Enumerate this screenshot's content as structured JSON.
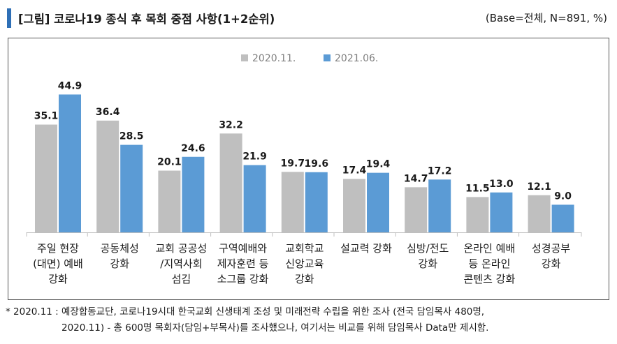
{
  "header": {
    "title": "[그림] 코로나19 종식 후 목회 중점 사항(1+2순위)",
    "base": "(Base=전체, N=891, %)"
  },
  "colors": {
    "accent": "#2e6fb6",
    "series_2020": "#bfbfbf",
    "series_2021": "#5b9bd5"
  },
  "chart_data": {
    "type": "bar",
    "title": "",
    "xlabel": "",
    "ylabel": "",
    "ylim": [
      0,
      50
    ],
    "categories": [
      [
        "주일 현장",
        "(대면) 예배",
        "강화"
      ],
      [
        "공동체성",
        "강화"
      ],
      [
        "교회 공공성",
        "/지역사회",
        "섬김"
      ],
      [
        "구역예배와",
        "제자훈련 등",
        "소그룹 강화"
      ],
      [
        "교회학교",
        "신앙교육",
        "강화"
      ],
      [
        "설교력 강화"
      ],
      [
        "심방/전도",
        "강화"
      ],
      [
        "온라인 예배",
        "등 온라인",
        "콘텐츠 강화"
      ],
      [
        "성경공부",
        "강화"
      ]
    ],
    "series": [
      {
        "name": "2020.11.",
        "values": [
          35.1,
          36.4,
          20.1,
          32.2,
          19.7,
          17.4,
          14.7,
          11.5,
          12.1
        ]
      },
      {
        "name": "2021.06.",
        "values": [
          44.9,
          28.5,
          24.6,
          21.9,
          19.6,
          19.4,
          17.2,
          13.0,
          9.0
        ]
      }
    ],
    "legend": "top-center"
  },
  "footnote": {
    "line1": "* 2020.11 : 예장합동교단, 코로나19시대 한국교회 신생태계 조성 및 미래전략 수립을 위한 조사 (전국 담임목사 480명,",
    "line2": "2020.11) - 총 600명 목회자(담임+부목사)를 조사했으나, 여기서는 비교를 위해 담임목사 Data만 제시함."
  }
}
